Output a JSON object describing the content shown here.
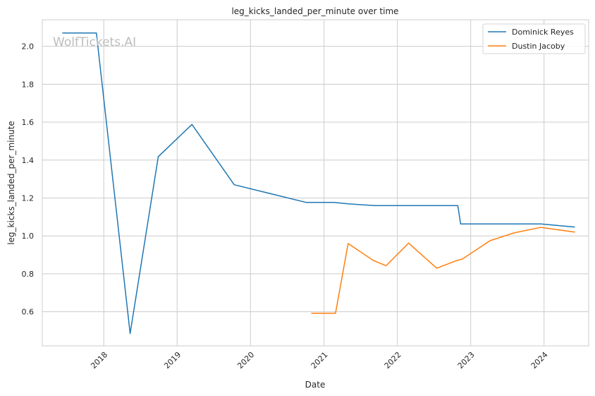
{
  "watermark": "WolfTickets.AI",
  "chart_data": {
    "type": "line",
    "title": "leg_kicks_landed_per_minute over time",
    "xlabel": "Date",
    "ylabel": "leg_kicks_landed_per_minute",
    "xlim": [
      "2017-03-01",
      "2024-08-10"
    ],
    "ylim": [
      0.42,
      2.14
    ],
    "x_ticks": [
      "2018-01-01",
      "2019-01-01",
      "2020-01-01",
      "2021-01-01",
      "2022-01-01",
      "2023-01-01",
      "2024-01-01"
    ],
    "x_tick_labels": [
      "2018",
      "2019",
      "2020",
      "2021",
      "2022",
      "2023",
      "2024"
    ],
    "y_ticks": [
      0.6,
      0.8,
      1.0,
      1.2,
      1.4,
      1.6,
      1.8,
      2.0
    ],
    "y_tick_labels": [
      "0.6",
      "0.8",
      "1.0",
      "1.2",
      "1.4",
      "1.6",
      "1.8",
      "2.0"
    ],
    "grid": true,
    "legend_position": "top-right",
    "series": [
      {
        "name": "Dominick Reyes",
        "color": "#1f77b4",
        "points": [
          {
            "x": "2017-06-10",
            "y": 2.07
          },
          {
            "x": "2017-10-07",
            "y": 2.07
          },
          {
            "x": "2017-11-25",
            "y": 2.07
          },
          {
            "x": "2018-05-12",
            "y": 0.485
          },
          {
            "x": "2018-09-29",
            "y": 1.418
          },
          {
            "x": "2019-03-16",
            "y": 1.588
          },
          {
            "x": "2019-10-12",
            "y": 1.27
          },
          {
            "x": "2020-10-03",
            "y": 1.177
          },
          {
            "x": "2021-02-20",
            "y": 1.177
          },
          {
            "x": "2021-05-01",
            "y": 1.169
          },
          {
            "x": "2021-09-11",
            "y": 1.16
          },
          {
            "x": "2022-10-29",
            "y": 1.16
          },
          {
            "x": "2022-11-12",
            "y": 1.063
          },
          {
            "x": "2023-12-16",
            "y": 1.063
          },
          {
            "x": "2024-06-01",
            "y": 1.047
          }
        ]
      },
      {
        "name": "Dustin Jacoby",
        "color": "#ff7f0e",
        "points": [
          {
            "x": "2020-10-31",
            "y": 0.592
          },
          {
            "x": "2021-02-27",
            "y": 0.592
          },
          {
            "x": "2021-05-01",
            "y": 0.96
          },
          {
            "x": "2021-09-04",
            "y": 0.87
          },
          {
            "x": "2021-11-06",
            "y": 0.843
          },
          {
            "x": "2022-02-26",
            "y": 0.962
          },
          {
            "x": "2022-07-16",
            "y": 0.83
          },
          {
            "x": "2022-10-29",
            "y": 0.872
          },
          {
            "x": "2022-11-19",
            "y": 0.877
          },
          {
            "x": "2023-04-08",
            "y": 0.975
          },
          {
            "x": "2023-08-05",
            "y": 1.016
          },
          {
            "x": "2023-12-16",
            "y": 1.045
          },
          {
            "x": "2024-06-01",
            "y": 1.02
          }
        ]
      }
    ]
  }
}
